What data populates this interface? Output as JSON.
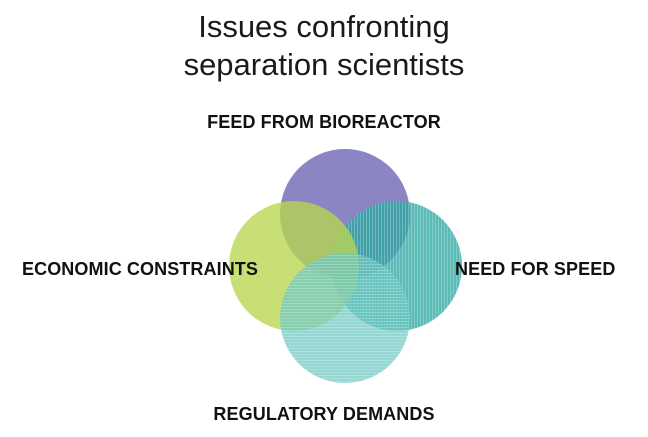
{
  "title": {
    "line1": "Issues confronting",
    "line2": "separation scientists"
  },
  "labels": {
    "top": "FEED FROM BIOREACTOR",
    "left": "ECONOMIC CONSTRAINTS",
    "right": "NEED FOR SPEED",
    "bottom": "REGULATORY DEMANDS"
  },
  "colors": {
    "top_circle": "#7770b8",
    "right_circle": "#2ea8a3",
    "left_circle": "#b7d64e",
    "bottom_circle": "#6ec7c2"
  }
}
